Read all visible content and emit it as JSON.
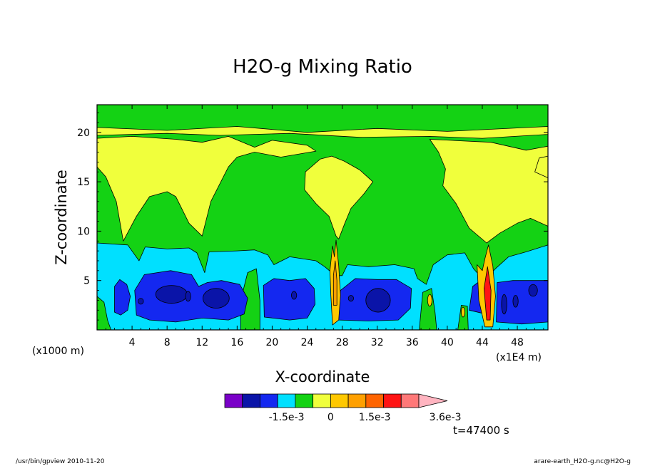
{
  "chart_data": {
    "type": "heatmap",
    "title": "H2O-g Mixing Ratio",
    "xlabel": "X-coordinate",
    "ylabel": "Z-coordinate",
    "x_unit_left": "(x1000 m)",
    "x_unit_right": "(x1E4 m)",
    "xlim": [
      0,
      51.5
    ],
    "ylim": [
      0,
      22.8
    ],
    "x_ticks": [
      4,
      8,
      12,
      16,
      20,
      24,
      28,
      32,
      36,
      40,
      44,
      48
    ],
    "x_tick_labels": [
      "4",
      "8",
      "12",
      "16",
      "20",
      "24",
      "28",
      "32",
      "36",
      "40",
      "44",
      "48"
    ],
    "y_ticks": [
      5,
      10,
      15,
      20
    ],
    "y_tick_labels": [
      "5",
      "10",
      "15",
      "20"
    ],
    "colorbar": {
      "levels": [
        "-2.4e-3",
        "-2.1e-3",
        "-1.8e-3",
        "-1.5e-3",
        "-1.2e-3",
        "-0.6e-3",
        "0",
        "0.6e-3",
        "1.2e-3",
        "1.5e-3",
        "2.1e-3",
        "2.7e-3",
        "3.0e-3",
        "3.6e-3"
      ],
      "labels": [
        "-1.5e-3",
        "0",
        "1.5e-3",
        "3.6e-3"
      ],
      "label_positions": [
        3.5,
        6,
        8.5,
        12.5
      ],
      "colors": [
        "#7a00c8",
        "#0a14a8",
        "#1428f0",
        "#00e0ff",
        "#14d214",
        "#f0ff3c",
        "#ffc800",
        "#ffa000",
        "#ff6400",
        "#ff1414",
        "#ff7878"
      ],
      "extend_color": "#ffb4c0"
    },
    "background_color": "#14d214",
    "features": {
      "upper_band": {
        "z_range": [
          20.5,
          22.8
        ],
        "color": "#14d214"
      },
      "yellow_band": {
        "z_range": [
          19.6,
          20.5
        ],
        "color": "#f0ff3c"
      },
      "cyan_layer": {
        "z_range": [
          0,
          8.7
        ],
        "color": "#00e0ff"
      },
      "blue_cores_x": [
        [
          2,
          4
        ],
        [
          5.5,
          17
        ],
        [
          19,
          25
        ],
        [
          27.5,
          36
        ],
        [
          42,
          51
        ]
      ],
      "convective_towers_x": [
        27,
        44.5
      ]
    }
  },
  "time_label": "t=47400 s",
  "footer": {
    "left": "/usr/bin/gpview   2010-11-20",
    "right": "arare-earth_H2O-g.nc@H2O-g"
  }
}
